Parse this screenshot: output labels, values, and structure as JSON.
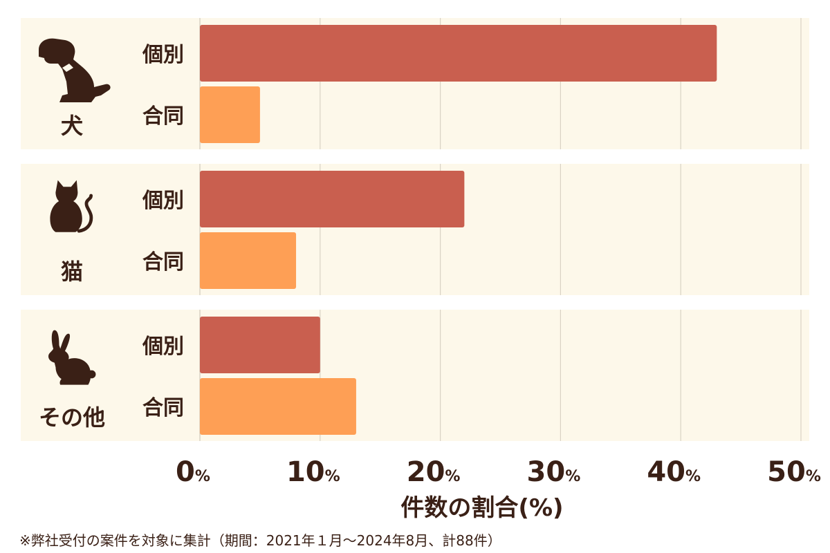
{
  "chart_data": {
    "type": "bar",
    "orientation": "horizontal",
    "groups": [
      {
        "label": "犬",
        "icon": "dog-icon",
        "series": [
          {
            "name": "個別",
            "value": 43
          },
          {
            "name": "合同",
            "value": 5
          }
        ]
      },
      {
        "label": "猫",
        "icon": "cat-icon",
        "series": [
          {
            "name": "個別",
            "value": 22
          },
          {
            "name": "合同",
            "value": 8
          }
        ]
      },
      {
        "label": "その他",
        "icon": "rabbit-icon",
        "series": [
          {
            "name": "個別",
            "value": 10
          },
          {
            "name": "合同",
            "value": 13
          }
        ]
      }
    ],
    "xticks": [
      {
        "value": 0,
        "label": "0",
        "unit": "%"
      },
      {
        "value": 10,
        "label": "10",
        "unit": "%"
      },
      {
        "value": 20,
        "label": "20",
        "unit": "%"
      },
      {
        "value": 30,
        "label": "30",
        "unit": "%"
      },
      {
        "value": 40,
        "label": "40",
        "unit": "%"
      },
      {
        "value": 50,
        "label": "50",
        "unit": "%"
      }
    ],
    "xlim": [
      0,
      50
    ],
    "xlabel": "件数の割合(%)",
    "grid": true,
    "colors": {
      "個別": "#c95f4f",
      "合同": "#fe9f55",
      "panel": "#fdf8ea",
      "grid": "#d9d2c4",
      "text": "#3a2016"
    }
  },
  "footnote": "※弊社受付の案件を対象に集計（期間：2021年１月～2024年8月、計88件）"
}
